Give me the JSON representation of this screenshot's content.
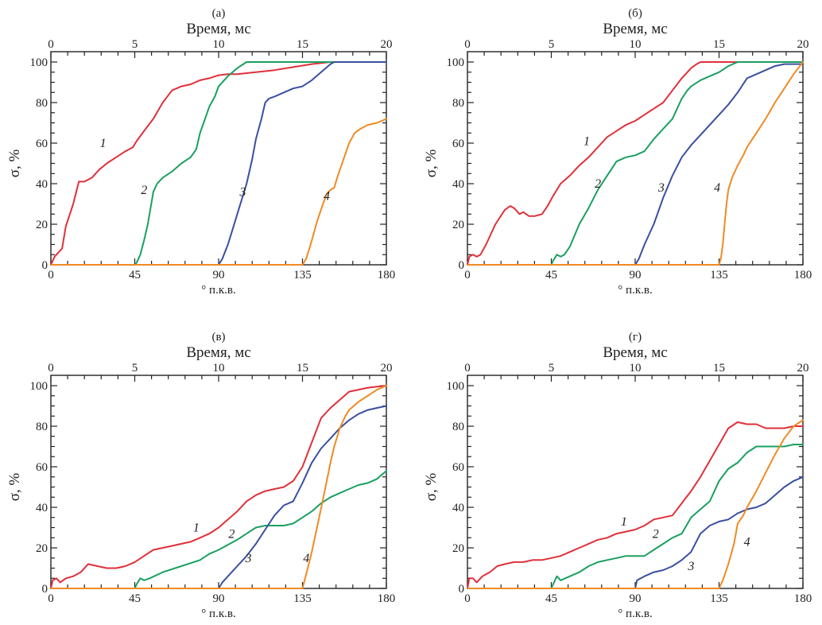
{
  "chart_data": [
    {
      "id": "a",
      "type": "line",
      "title": "(а)",
      "xlabel": "° п.к.в.",
      "x2label": "Время, мс",
      "ylabel": "σ, %",
      "xlim": [
        0,
        180
      ],
      "x2lim": [
        0,
        20
      ],
      "ylim": [
        0,
        100
      ],
      "xticks": [
        0,
        45,
        90,
        135,
        180
      ],
      "x2ticks": [
        0,
        5,
        10,
        15,
        20
      ],
      "yticks": [
        0,
        20,
        40,
        60,
        80,
        100
      ],
      "grid": false,
      "series": [
        {
          "name": "1",
          "color": "#e0303a",
          "label_at": [
            28,
            58
          ],
          "x": [
            0,
            2,
            5,
            6,
            8,
            12,
            15,
            16,
            18,
            22,
            26,
            30,
            35,
            40,
            44,
            46,
            50,
            55,
            60,
            65,
            70,
            75,
            80,
            85,
            90,
            95,
            100,
            110,
            120,
            130,
            140,
            150,
            160,
            170,
            180
          ],
          "y": [
            0,
            4,
            7,
            8,
            19,
            30,
            41,
            41,
            41,
            43,
            47,
            50,
            53,
            56,
            58,
            61,
            66,
            72,
            80,
            86,
            88,
            89,
            91,
            92,
            93.5,
            94,
            94,
            95,
            96,
            97.5,
            99,
            100,
            100,
            100,
            100
          ]
        },
        {
          "name": "2",
          "color": "#1aa060",
          "label_at": [
            50,
            35
          ],
          "x": [
            0,
            45,
            46,
            48,
            50,
            52,
            55,
            57,
            58,
            60,
            65,
            70,
            75,
            78,
            80,
            82,
            85,
            88,
            90,
            95,
            100,
            105,
            107,
            120,
            140,
            160,
            180
          ],
          "y": [
            0,
            0,
            1,
            5,
            12,
            20,
            36,
            40,
            41,
            43,
            46,
            50,
            53,
            57,
            65,
            70,
            78,
            83,
            88,
            93,
            97,
            100,
            100,
            100,
            100,
            100,
            100
          ]
        },
        {
          "name": "3",
          "color": "#3a4fa0",
          "label_at": [
            103,
            34
          ],
          "x": [
            0,
            90,
            92,
            95,
            98,
            101,
            105,
            108,
            110,
            113,
            115,
            117,
            120,
            125,
            130,
            135,
            140,
            145,
            150,
            152,
            160,
            170,
            180
          ],
          "y": [
            0,
            0,
            3,
            10,
            19,
            28,
            40,
            52,
            62,
            72,
            80,
            82,
            83,
            85,
            87,
            88,
            91,
            95,
            99,
            100,
            100,
            100,
            100
          ]
        },
        {
          "name": "4",
          "color": "#f08a24",
          "label_at": [
            148,
            32
          ],
          "x": [
            0,
            135,
            137,
            140,
            143,
            146,
            148,
            150,
            152,
            154,
            157,
            160,
            163,
            166,
            170,
            175,
            180
          ],
          "y": [
            0,
            0,
            3,
            12,
            22,
            30,
            35,
            37,
            38,
            44,
            52,
            60,
            65,
            67,
            69,
            70,
            72
          ]
        }
      ]
    },
    {
      "id": "b",
      "type": "line",
      "title": "(б)",
      "xlabel": "° п.к.в.",
      "x2label": "Время, мс",
      "ylabel": "σ, %",
      "xlim": [
        0,
        180
      ],
      "x2lim": [
        0,
        20
      ],
      "ylim": [
        0,
        100
      ],
      "xticks": [
        0,
        45,
        90,
        135,
        180
      ],
      "x2ticks": [
        0,
        5,
        10,
        15,
        20
      ],
      "yticks": [
        0,
        20,
        40,
        60,
        80,
        100
      ],
      "grid": false,
      "series": [
        {
          "name": "1",
          "color": "#e0303a",
          "label_at": [
            64,
            59
          ],
          "x": [
            0,
            1,
            3,
            5,
            7,
            10,
            15,
            20,
            23,
            25,
            28,
            30,
            33,
            36,
            40,
            43,
            46,
            50,
            55,
            60,
            65,
            70,
            75,
            80,
            85,
            90,
            95,
            100,
            105,
            110,
            115,
            120,
            123,
            125,
            130,
            140,
            160,
            180
          ],
          "y": [
            0,
            4,
            5,
            4,
            5,
            10,
            20,
            27,
            29,
            28,
            25,
            26,
            24,
            24,
            25,
            29,
            34,
            40,
            44,
            49,
            53,
            58,
            63,
            66,
            69,
            71,
            74,
            77,
            80,
            86,
            92,
            97,
            99,
            100,
            100,
            100,
            100,
            100
          ]
        },
        {
          "name": "2",
          "color": "#1aa060",
          "label_at": [
            70,
            38
          ],
          "x": [
            0,
            45,
            46,
            48,
            50,
            52,
            55,
            60,
            65,
            70,
            75,
            80,
            85,
            90,
            95,
            100,
            105,
            110,
            115,
            118,
            120,
            125,
            130,
            135,
            140,
            145,
            150,
            160,
            180
          ],
          "y": [
            0,
            0,
            2,
            5,
            4,
            5,
            9,
            20,
            28,
            37,
            44,
            51,
            53,
            54,
            56,
            62,
            67,
            72,
            82,
            86,
            88,
            91,
            93,
            95,
            98,
            100,
            100,
            100,
            100
          ]
        },
        {
          "name": "3",
          "color": "#3a4fa0",
          "label_at": [
            104,
            36
          ],
          "x": [
            0,
            90,
            92,
            95,
            100,
            105,
            110,
            115,
            120,
            125,
            130,
            135,
            140,
            145,
            150,
            155,
            160,
            165,
            170,
            175,
            180
          ],
          "y": [
            0,
            0,
            3,
            10,
            20,
            33,
            44,
            53,
            59,
            64,
            69,
            74,
            79,
            85,
            92,
            94,
            96,
            98,
            99,
            99,
            99
          ]
        },
        {
          "name": "4",
          "color": "#f08a24",
          "label_at": [
            134,
            36
          ],
          "x": [
            0,
            135,
            136,
            137,
            138,
            139,
            140,
            142,
            145,
            148,
            150,
            155,
            160,
            165,
            170,
            175,
            180
          ],
          "y": [
            0,
            0,
            3,
            10,
            20,
            30,
            37,
            43,
            49,
            54,
            58,
            65,
            72,
            80,
            87,
            94,
            100
          ]
        }
      ]
    },
    {
      "id": "v",
      "type": "line",
      "title": "(в)",
      "xlabel": "° п.к.в.",
      "x2label": "Время, мс",
      "ylabel": "σ, %",
      "xlim": [
        0,
        180
      ],
      "x2lim": [
        0,
        20
      ],
      "ylim": [
        0,
        100
      ],
      "xticks": [
        0,
        45,
        90,
        135,
        180
      ],
      "x2ticks": [
        0,
        5,
        10,
        15,
        20
      ],
      "yticks": [
        0,
        20,
        40,
        60,
        80,
        100
      ],
      "grid": false,
      "series": [
        {
          "name": "1",
          "color": "#e0303a",
          "label_at": [
            78,
            28
          ],
          "x": [
            0,
            1,
            3,
            5,
            8,
            12,
            16,
            20,
            25,
            30,
            35,
            40,
            45,
            50,
            55,
            60,
            65,
            70,
            75,
            80,
            85,
            90,
            95,
            100,
            105,
            110,
            115,
            120,
            125,
            130,
            135,
            140,
            145,
            150,
            155,
            160,
            165,
            170,
            175,
            180
          ],
          "y": [
            0,
            4,
            5,
            3,
            5,
            6,
            8,
            12,
            11,
            10,
            10,
            11,
            13,
            16,
            19,
            20,
            21,
            22,
            23,
            25,
            27,
            30,
            34,
            38,
            43,
            46,
            48,
            49,
            50,
            53,
            60,
            72,
            84,
            89,
            93,
            97,
            98,
            99,
            99.5,
            100
          ]
        },
        {
          "name": "2",
          "color": "#1aa060",
          "label_at": [
            97,
            25
          ],
          "x": [
            0,
            45,
            46,
            48,
            50,
            53,
            60,
            70,
            80,
            85,
            90,
            100,
            105,
            110,
            115,
            120,
            125,
            130,
            135,
            140,
            145,
            150,
            155,
            160,
            165,
            170,
            175,
            180
          ],
          "y": [
            0,
            0,
            2,
            5,
            4,
            5,
            8,
            11,
            14,
            17,
            19,
            24,
            27,
            30,
            31,
            31,
            31,
            32,
            35,
            38,
            42,
            45,
            47,
            49,
            51,
            52,
            54,
            58
          ]
        },
        {
          "name": "3",
          "color": "#3a4fa0",
          "label_at": [
            106,
            13
          ],
          "x": [
            0,
            90,
            92,
            95,
            100,
            105,
            110,
            115,
            120,
            125,
            130,
            135,
            140,
            145,
            150,
            155,
            160,
            165,
            170,
            175,
            180
          ],
          "y": [
            0,
            0,
            3,
            6,
            11,
            16,
            22,
            29,
            36,
            41,
            43,
            52,
            62,
            69,
            74,
            79,
            83,
            86,
            88,
            89,
            90
          ]
        },
        {
          "name": "4",
          "color": "#f08a24",
          "label_at": [
            137,
            13
          ],
          "x": [
            0,
            135,
            137,
            140,
            143,
            146,
            150,
            152,
            155,
            158,
            160,
            165,
            170,
            175,
            180
          ],
          "y": [
            0,
            0,
            7,
            18,
            31,
            44,
            62,
            70,
            79,
            85,
            88,
            92,
            95,
            98,
            100
          ]
        }
      ]
    },
    {
      "id": "g",
      "type": "line",
      "title": "(г)",
      "xlabel": "° п.к.в.",
      "x2label": "Время, мс",
      "ylabel": "σ, %",
      "xlim": [
        0,
        180
      ],
      "x2lim": [
        0,
        20
      ],
      "ylim": [
        0,
        100
      ],
      "xticks": [
        0,
        45,
        90,
        135,
        180
      ],
      "x2ticks": [
        0,
        5,
        10,
        15,
        20
      ],
      "yticks": [
        0,
        20,
        40,
        60,
        80,
        100
      ],
      "grid": false,
      "series": [
        {
          "name": "1",
          "color": "#e0303a",
          "label_at": [
            84,
            31
          ],
          "x": [
            0,
            1,
            3,
            5,
            8,
            12,
            16,
            20,
            25,
            30,
            35,
            40,
            45,
            50,
            55,
            60,
            65,
            70,
            75,
            80,
            85,
            90,
            95,
            100,
            105,
            110,
            115,
            120,
            125,
            130,
            135,
            140,
            145,
            150,
            155,
            160,
            165,
            170,
            175,
            180
          ],
          "y": [
            0,
            5,
            5,
            3,
            6,
            8,
            11,
            12,
            13,
            13,
            14,
            14,
            15,
            16,
            18,
            20,
            22,
            24,
            25,
            27,
            28,
            29,
            31,
            34,
            35,
            36,
            42,
            48,
            55,
            63,
            71,
            79,
            82,
            81,
            81,
            79,
            79,
            79,
            80,
            80
          ]
        },
        {
          "name": "2",
          "color": "#1aa060",
          "label_at": [
            101,
            25
          ],
          "x": [
            0,
            45,
            46,
            48,
            50,
            55,
            60,
            65,
            70,
            75,
            80,
            85,
            90,
            95,
            100,
            105,
            110,
            115,
            120,
            125,
            130,
            135,
            140,
            145,
            150,
            155,
            160,
            165,
            170,
            175,
            180
          ],
          "y": [
            0,
            0,
            2,
            6,
            4,
            6,
            8,
            11,
            13,
            14,
            15,
            16,
            16,
            16,
            19,
            22,
            25,
            27,
            35,
            39,
            43,
            53,
            59,
            62,
            67,
            70,
            70,
            70,
            70,
            71,
            71
          ]
        },
        {
          "name": "3",
          "color": "#3a4fa0",
          "label_at": [
            120,
            9
          ],
          "x": [
            0,
            90,
            91,
            95,
            100,
            105,
            110,
            115,
            120,
            125,
            130,
            135,
            140,
            145,
            150,
            155,
            160,
            165,
            170,
            175,
            180
          ],
          "y": [
            0,
            0,
            4,
            6,
            8,
            9,
            11,
            14,
            18,
            27,
            31,
            33,
            34,
            37,
            39,
            40,
            42,
            46,
            50,
            53,
            55
          ]
        },
        {
          "name": "4",
          "color": "#f08a24",
          "label_at": [
            150,
            21
          ],
          "x": [
            0,
            135,
            137,
            140,
            143,
            145,
            148,
            150,
            155,
            160,
            165,
            170,
            175,
            180
          ],
          "y": [
            0,
            0,
            4,
            12,
            22,
            32,
            36,
            40,
            48,
            57,
            66,
            74,
            80,
            83
          ]
        }
      ]
    }
  ]
}
